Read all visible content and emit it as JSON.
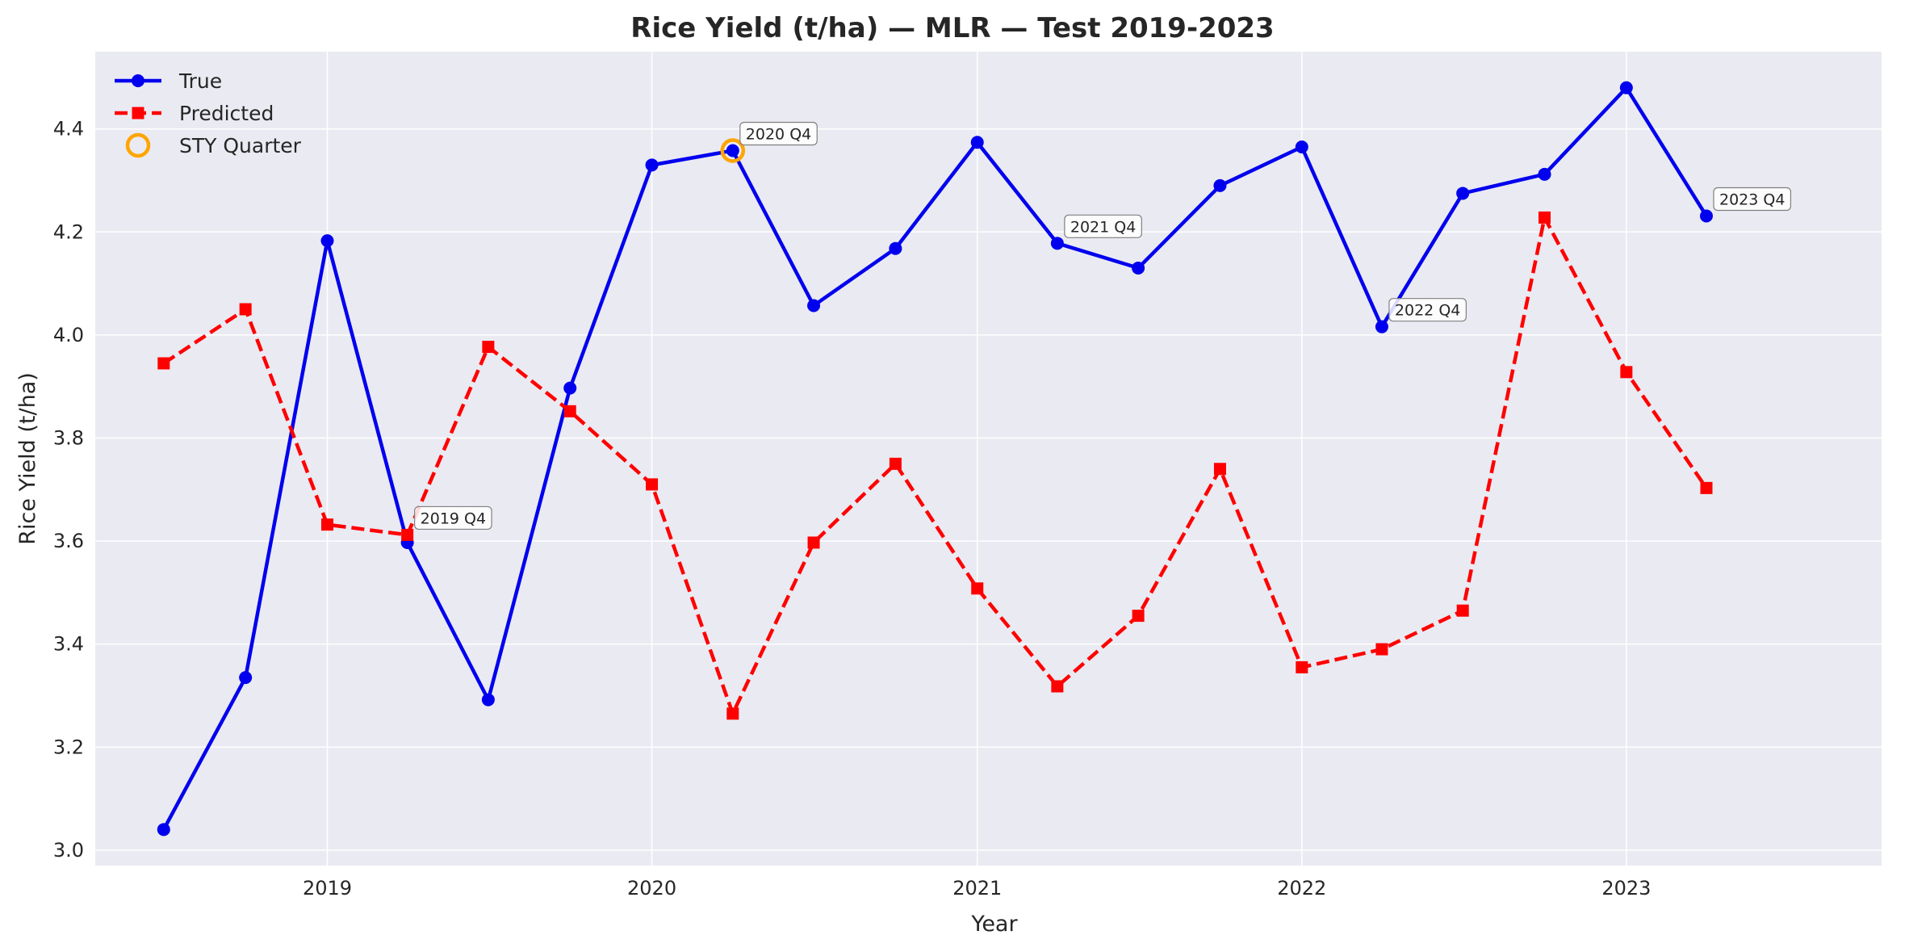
{
  "chart_data": {
    "type": "line",
    "title": "Rice Yield (t/ha) — MLR — Test 2019-2023",
    "xlabel": "Year",
    "ylabel": "Rice Yield (t/ha)",
    "xlim": [
      "2018-04-15",
      "2023-10-15"
    ],
    "ylim": [
      2.97,
      4.55
    ],
    "x_ticks": [
      "2019",
      "2020",
      "2021",
      "2022",
      "2023"
    ],
    "x_tick_dates": [
      "2019-01-01",
      "2020-01-01",
      "2021-01-01",
      "2022-01-01",
      "2023-01-01"
    ],
    "y_ticks": [
      3.0,
      3.2,
      3.4,
      3.6,
      3.8,
      4.0,
      4.2,
      4.4
    ],
    "y_tick_labels": [
      "3.0",
      "3.2",
      "3.4",
      "3.6",
      "3.8",
      "4.0",
      "4.2",
      "4.4"
    ],
    "grid": true,
    "legend_position": "top-left",
    "x": [
      "2018-07-01",
      "2018-10-01",
      "2019-01-01",
      "2019-04-01",
      "2019-07-01",
      "2019-10-01",
      "2020-01-01",
      "2020-04-01",
      "2020-07-01",
      "2020-10-01",
      "2021-01-01",
      "2021-04-01",
      "2021-07-01",
      "2021-10-01",
      "2022-01-01",
      "2022-04-01",
      "2022-07-01",
      "2022-10-01",
      "2023-01-01",
      "2023-04-01"
    ],
    "series": [
      {
        "name": "True",
        "color": "#0000ee",
        "line_style": "solid",
        "marker": "circle",
        "values": [
          3.04,
          3.335,
          4.183,
          3.597,
          3.292,
          3.897,
          4.33,
          4.358,
          4.057,
          4.168,
          4.374,
          4.178,
          4.13,
          4.29,
          4.365,
          4.016,
          4.275,
          4.312,
          4.48,
          4.231
        ]
      },
      {
        "name": "Predicted",
        "color": "#ff0000",
        "line_style": "dashed",
        "marker": "square",
        "values": [
          3.945,
          4.05,
          3.632,
          3.612,
          3.977,
          3.852,
          3.71,
          3.265,
          3.597,
          3.75,
          3.508,
          3.318,
          3.455,
          3.74,
          3.355,
          3.39,
          3.465,
          4.228,
          3.928,
          3.703
        ]
      }
    ],
    "highlight": {
      "name": "STY Quarter",
      "color": "#ffa500",
      "marker": "open-circle",
      "x": "2020-04-01",
      "y": 4.358
    },
    "annotations": [
      {
        "text": "2019 Q4",
        "x": "2019-04-01",
        "y": 3.612
      },
      {
        "text": "2020 Q4",
        "x": "2020-04-01",
        "y": 4.358
      },
      {
        "text": "2021 Q4",
        "x": "2021-04-01",
        "y": 4.178
      },
      {
        "text": "2022 Q4",
        "x": "2022-04-01",
        "y": 4.016
      },
      {
        "text": "2023 Q4",
        "x": "2023-04-01",
        "y": 4.231
      }
    ],
    "colors": {
      "plot_background": "#eaeaf2",
      "grid": "#ffffff",
      "annotation_border": "#808080"
    }
  }
}
